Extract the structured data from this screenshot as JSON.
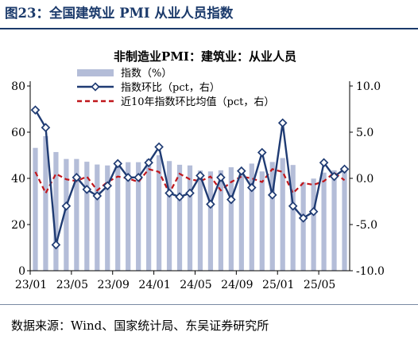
{
  "figure_title": "图23：全国建筑业 PMI 从业人员指数",
  "source": "数据来源：Wind、国家统计局、东吴证券研究所",
  "colors": {
    "bar": "#b4bdd8",
    "line": "#1f3b73",
    "avg": "#c0161b",
    "title": "#1b3a6b"
  },
  "chart_data": {
    "type": "bar",
    "title": "非制造业PMI：建筑业：从业人员",
    "x": [
      "23/01",
      "23/02",
      "23/03",
      "23/04",
      "23/05",
      "23/06",
      "23/07",
      "23/08",
      "23/09",
      "23/10",
      "23/11",
      "23/12",
      "24/01",
      "24/02",
      "24/03",
      "24/04",
      "24/05",
      "24/06",
      "24/07",
      "24/08",
      "24/09",
      "24/10",
      "24/11",
      "24/12",
      "25/01",
      "25/02",
      "25/03",
      "25/04",
      "25/05",
      "25/06",
      "25/07"
    ],
    "xtick_labels": [
      "23/01",
      "23/05",
      "23/09",
      "24/01",
      "24/05",
      "24/09",
      "25/01",
      "25/05"
    ],
    "xtick_every": 4,
    "series": [
      {
        "name": "指数（%）",
        "type": "bar",
        "axis": "left",
        "values": [
          53.2,
          58.3,
          51.4,
          48.4,
          48.4,
          47.2,
          46.0,
          45.6,
          47.1,
          47.0,
          47.0,
          48.4,
          50.0,
          47.5,
          45.9,
          45.6,
          43.4,
          43.0,
          43.5,
          44.8,
          43.2,
          46.4,
          43.0,
          47.1,
          48.8,
          45.8,
          38.3,
          39.9,
          42.5,
          43.5,
          44.2
        ]
      },
      {
        "name": "指数环比（pct，右）",
        "type": "line",
        "axis": "right",
        "values": [
          7.4,
          5.5,
          -7.2,
          -3.0,
          0.1,
          -1.2,
          -1.9,
          -0.8,
          1.6,
          0.1,
          0.1,
          1.7,
          3.4,
          -1.6,
          -2.0,
          -1.6,
          0.3,
          -2.8,
          0.1,
          -2.3,
          0.8,
          -1.0,
          2.8,
          -1.8,
          6.0,
          -3.0,
          -4.3,
          -3.6,
          1.7,
          0.2,
          1.0
        ]
      },
      {
        "name": "近10年指数环比均值（pct，右）",
        "type": "line",
        "style": "dashed",
        "axis": "right",
        "values": [
          0.7,
          -1.6,
          0.5,
          -0.1,
          -0.3,
          0.2,
          -1.3,
          -0.4,
          0.2,
          0.0,
          -0.4,
          1.0,
          0.7,
          -1.6,
          0.5,
          -0.1,
          -0.3,
          0.2,
          -1.3,
          -0.4,
          0.2,
          0.0,
          -0.4,
          1.0,
          0.7,
          -1.6,
          -0.5,
          -0.7,
          -0.3,
          0.6,
          -0.2
        ]
      }
    ],
    "y_left": {
      "lim": [
        0,
        80
      ],
      "ticks": [
        0,
        20,
        40,
        60,
        80
      ]
    },
    "y_right": {
      "lim": [
        -10,
        10
      ],
      "ticks": [
        -10,
        -5,
        0,
        5,
        10
      ],
      "tick_labels": [
        "-10.0",
        "-5.0",
        "0.0",
        "5.0",
        "10.0"
      ]
    },
    "grid": false,
    "legend": "top-center"
  }
}
